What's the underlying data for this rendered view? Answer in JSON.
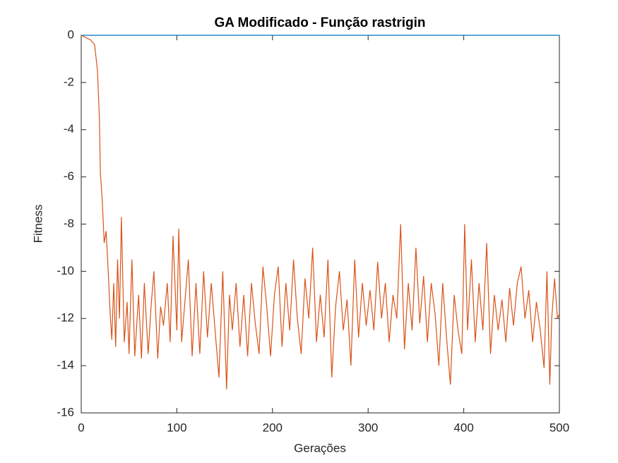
{
  "chart_data": {
    "type": "line",
    "title": "GA Modificado - Função rastrigin",
    "x_label": "Gerações",
    "y_label": "Fitness",
    "xlim": [
      0,
      500
    ],
    "ylim": [
      -16,
      0
    ],
    "xticks": [
      0,
      100,
      200,
      300,
      400,
      500
    ],
    "yticks": [
      -16,
      -14,
      -12,
      -10,
      -8,
      -6,
      -4,
      -2,
      0
    ],
    "series": [
      {
        "color": "#0072bd",
        "x": [
          0,
          500
        ],
        "values": [
          0,
          0
        ]
      },
      {
        "color": "#d95319",
        "x": [
          0,
          5,
          10,
          14,
          17,
          19,
          20,
          22,
          24,
          26,
          28,
          30,
          32,
          34,
          36,
          38,
          40,
          42,
          45,
          48,
          50,
          53,
          56,
          60,
          63,
          66,
          70,
          73,
          76,
          80,
          83,
          86,
          90,
          93,
          96,
          100,
          102,
          105,
          108,
          112,
          116,
          120,
          124,
          128,
          132,
          136,
          140,
          144,
          148,
          152,
          155,
          158,
          162,
          166,
          170,
          174,
          178,
          182,
          186,
          190,
          194,
          198,
          202,
          206,
          210,
          214,
          218,
          222,
          226,
          230,
          234,
          238,
          242,
          246,
          250,
          254,
          258,
          262,
          266,
          270,
          274,
          278,
          282,
          286,
          290,
          294,
          298,
          302,
          306,
          310,
          314,
          318,
          322,
          326,
          330,
          334,
          338,
          342,
          346,
          350,
          354,
          358,
          362,
          366,
          370,
          374,
          378,
          382,
          386,
          390,
          394,
          398,
          401,
          404,
          408,
          412,
          416,
          420,
          424,
          428,
          432,
          436,
          440,
          444,
          448,
          452,
          456,
          460,
          464,
          468,
          472,
          476,
          480,
          484,
          487,
          490,
          492,
          495,
          498,
          500
        ],
        "values": [
          0,
          -0.1,
          -0.2,
          -0.4,
          -1.5,
          -3.5,
          -5.8,
          -7,
          -8.8,
          -8.3,
          -9.8,
          -11.6,
          -12.9,
          -10.5,
          -13.2,
          -9.5,
          -12,
          -7.7,
          -13,
          -11.3,
          -13.5,
          -9.5,
          -13.6,
          -11,
          -13.7,
          -10.5,
          -13.5,
          -11.5,
          -10,
          -13.7,
          -11.5,
          -12.3,
          -10.5,
          -13,
          -8.5,
          -12.5,
          -8.2,
          -13,
          -11.5,
          -9.5,
          -13.6,
          -10.5,
          -13.5,
          -10,
          -12.8,
          -10.5,
          -12.5,
          -14.5,
          -10,
          -15,
          -11,
          -12.5,
          -10.5,
          -13.2,
          -11,
          -13.6,
          -10.5,
          -12.2,
          -13.5,
          -9.8,
          -11.5,
          -13.6,
          -11,
          -9.8,
          -13.2,
          -10.5,
          -12.5,
          -9.5,
          -12,
          -13.5,
          -10.3,
          -12,
          -9,
          -13,
          -11,
          -12.8,
          -9.5,
          -14.5,
          -11.5,
          -10,
          -12.5,
          -11.2,
          -14,
          -9.5,
          -12.8,
          -10.5,
          -12.3,
          -10.8,
          -12.5,
          -9.6,
          -12,
          -10.5,
          -13,
          -11,
          -12,
          -8,
          -13.3,
          -10.5,
          -12.5,
          -9,
          -12.2,
          -10.2,
          -13,
          -10.5,
          -11.8,
          -14,
          -10.5,
          -12.8,
          -14.8,
          -11,
          -12.5,
          -13.5,
          -8,
          -12.5,
          -9.5,
          -13,
          -10.5,
          -12.5,
          -8.8,
          -13.5,
          -11,
          -12.5,
          -11.2,
          -13,
          -10.7,
          -12.3,
          -10.5,
          -9.8,
          -12,
          -10.8,
          -13,
          -11.3,
          -12.5,
          -14.1,
          -10,
          -14.8,
          -12,
          -10.3,
          -12,
          -11.8
        ]
      }
    ]
  }
}
